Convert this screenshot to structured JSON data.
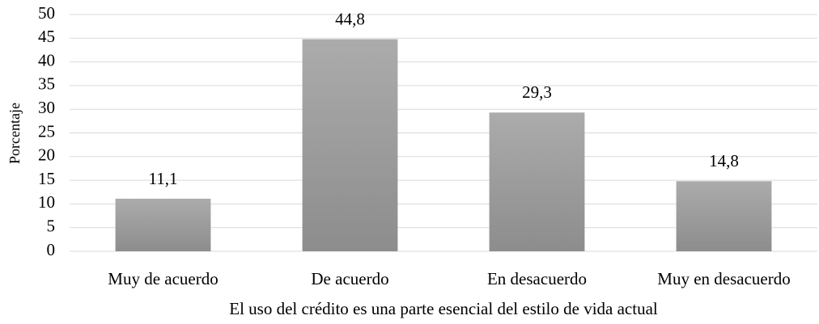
{
  "chart_data": {
    "type": "bar",
    "categories": [
      "Muy de acuerdo",
      "De acuerdo",
      "En desacuerdo",
      "Muy en desacuerdo"
    ],
    "values": [
      11.1,
      44.8,
      29.3,
      14.8
    ],
    "value_labels": [
      "11,1",
      "44,8",
      "29,3",
      "14,8"
    ],
    "color": "#a0a0a0",
    "ylabel": "Porcentaje",
    "xlabel": "El uso del crédito es una parte esencial del estilo de vida actual",
    "ylim": [
      0,
      50
    ],
    "yticks": [
      0,
      5,
      10,
      15,
      20,
      25,
      30,
      35,
      40,
      45,
      50
    ],
    "grid": true
  }
}
